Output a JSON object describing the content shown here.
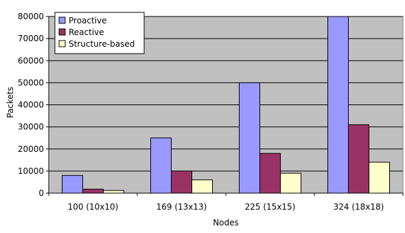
{
  "chart_data": {
    "type": "bar",
    "categories": [
      "100 (10x10)",
      "169 (13x13)",
      "225 (15x15)",
      "324 (18x18)"
    ],
    "series": [
      {
        "name": "Proactive",
        "values": [
          8000,
          25000,
          50000,
          80000
        ],
        "color": "#9999ff"
      },
      {
        "name": "Reactive",
        "values": [
          1800,
          10000,
          18000,
          31000
        ],
        "color": "#993366"
      },
      {
        "name": "Structure-based",
        "values": [
          1200,
          6000,
          9000,
          14000
        ],
        "color": "#ffffcc"
      }
    ],
    "xlabel": "Nodes",
    "ylabel": "Packets",
    "ylim": [
      0,
      80000
    ],
    "yticks": [
      "0",
      "10000",
      "20000",
      "30000",
      "40000",
      "50000",
      "60000",
      "70000",
      "80000"
    ],
    "grid": true,
    "legend_position": "top-left",
    "plot_background": "#c0c0c0"
  }
}
